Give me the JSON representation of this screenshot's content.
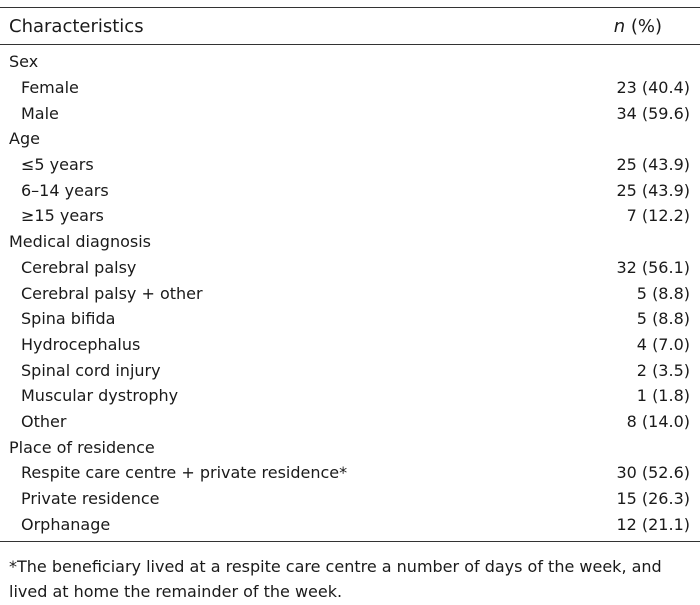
{
  "table": {
    "header": {
      "characteristics_label": "Characteristics",
      "n_label": "n",
      "pct_label": "(%)"
    },
    "groups": [
      {
        "title": "Sex",
        "rows": [
          {
            "label": "Female",
            "value": "23 (40.4)"
          },
          {
            "label": "Male",
            "value": "34 (59.6)"
          }
        ]
      },
      {
        "title": "Age",
        "rows": [
          {
            "label": "≤5 years",
            "value": "25 (43.9)"
          },
          {
            "label": "6–14 years",
            "value": "25 (43.9)"
          },
          {
            "label": "≥15 years",
            "value": "7 (12.2)"
          }
        ]
      },
      {
        "title": "Medical diagnosis",
        "rows": [
          {
            "label": "Cerebral palsy",
            "value": "32 (56.1)"
          },
          {
            "label": "Cerebral palsy + other",
            "value": "5 (8.8)"
          },
          {
            "label": "Spina bifida",
            "value": "5 (8.8)"
          },
          {
            "label": "Hydrocephalus",
            "value": "4 (7.0)"
          },
          {
            "label": "Spinal cord injury",
            "value": "2 (3.5)"
          },
          {
            "label": "Muscular dystrophy",
            "value": "1 (1.8)"
          },
          {
            "label": "Other",
            "value": "8 (14.0)"
          }
        ]
      },
      {
        "title": "Place of residence",
        "rows": [
          {
            "label": "Respite care centre + private residence*",
            "value": "30 (52.6)"
          },
          {
            "label": "Private residence",
            "value": "15 (26.3)"
          },
          {
            "label": "Orphanage",
            "value": "12 (21.1)"
          }
        ]
      }
    ],
    "footnote": "*The beneficiary lived at a respite care centre a number of days of the week, and lived at home the remainder of the week."
  }
}
